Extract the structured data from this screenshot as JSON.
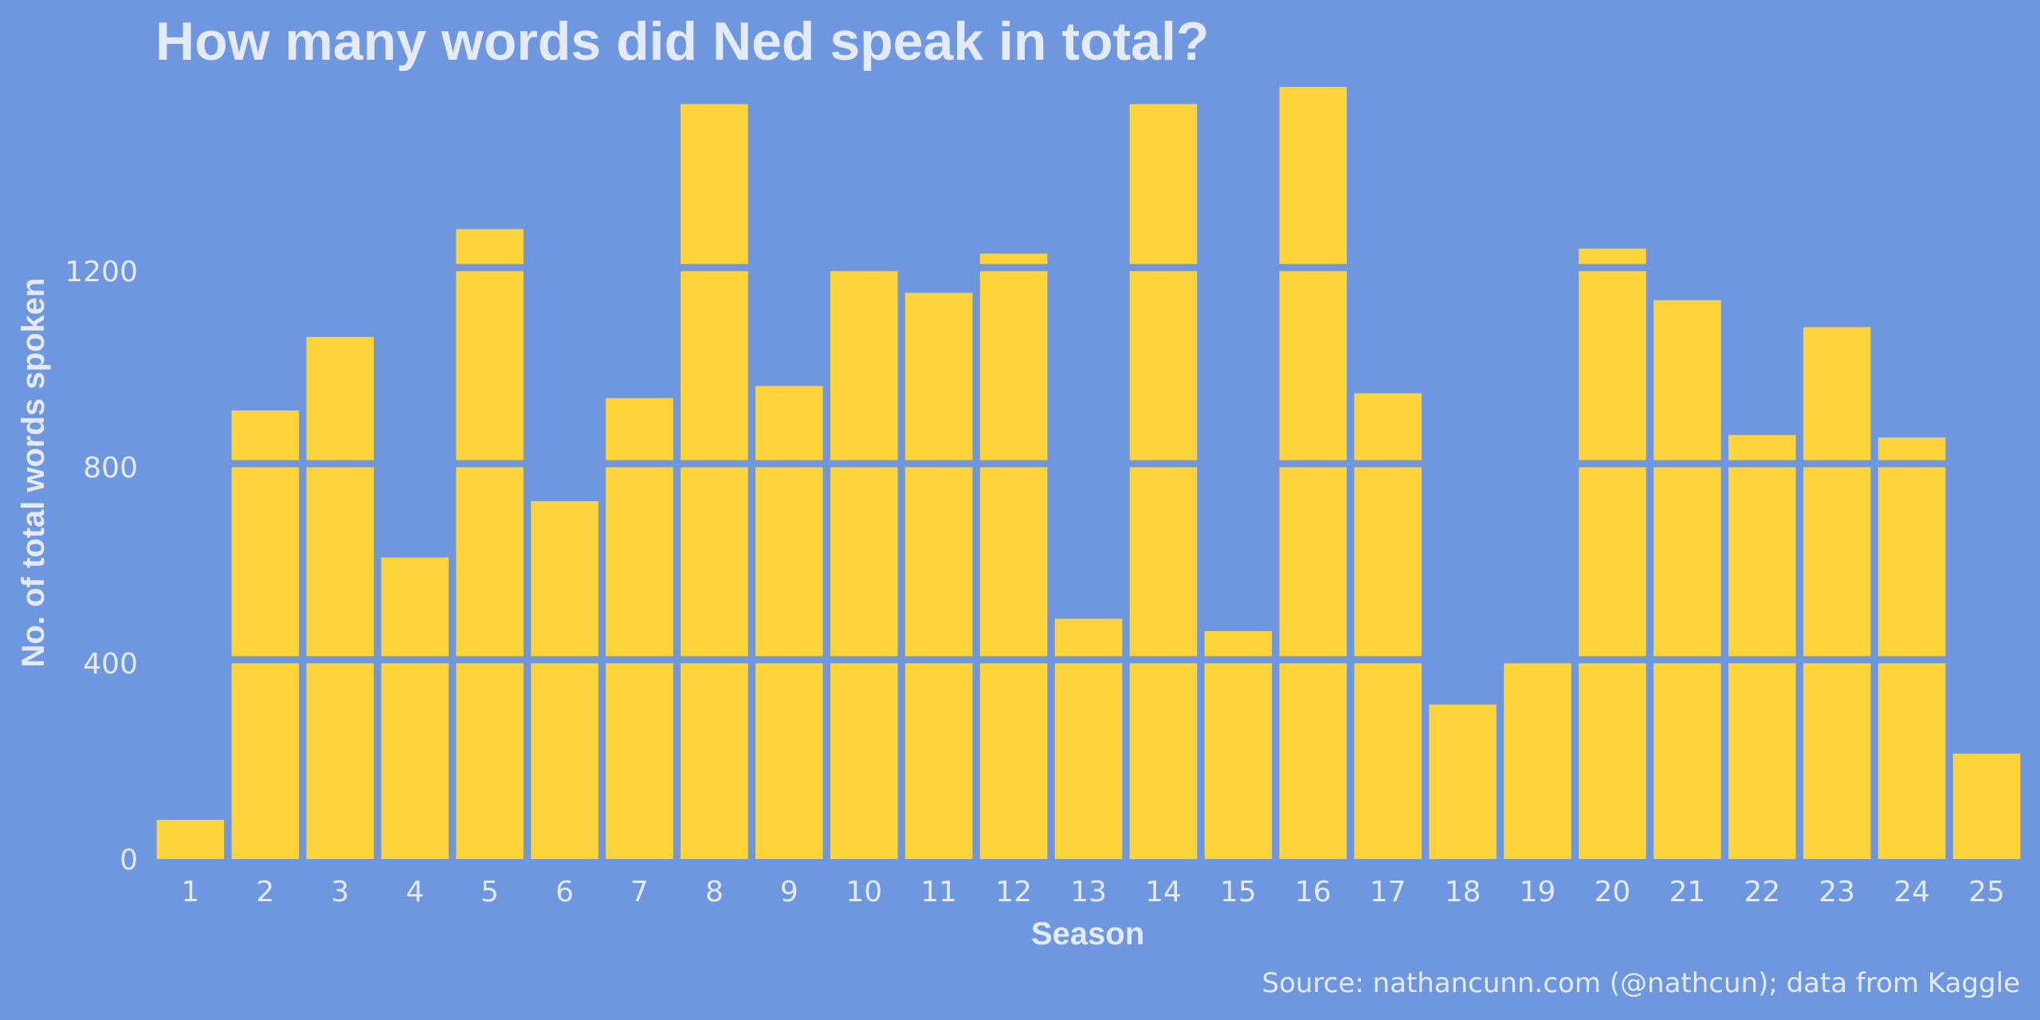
{
  "chart_data": {
    "type": "bar",
    "title": "How many words did Ned speak in total?",
    "xlabel": "Season",
    "ylabel": "No. of total words spoken",
    "source": "Source: nathancunn.com (@nathcun); data from Kaggle",
    "categories": [
      "1",
      "2",
      "3",
      "4",
      "5",
      "6",
      "7",
      "8",
      "9",
      "10",
      "11",
      "12",
      "13",
      "14",
      "15",
      "16",
      "17",
      "18",
      "19",
      "20",
      "21",
      "22",
      "23",
      "24",
      "25"
    ],
    "values": [
      80,
      915,
      1065,
      615,
      1285,
      730,
      940,
      1540,
      965,
      1210,
      1155,
      1235,
      490,
      1540,
      465,
      1575,
      950,
      315,
      410,
      1245,
      1140,
      865,
      1085,
      860,
      215
    ],
    "yticks": [
      0,
      400,
      800,
      1200
    ],
    "ylim": [
      0,
      1580
    ],
    "grid": true,
    "colors": {
      "background": "#6f97df",
      "bar": "#ffd43b",
      "text": "#e3ebfb"
    }
  }
}
